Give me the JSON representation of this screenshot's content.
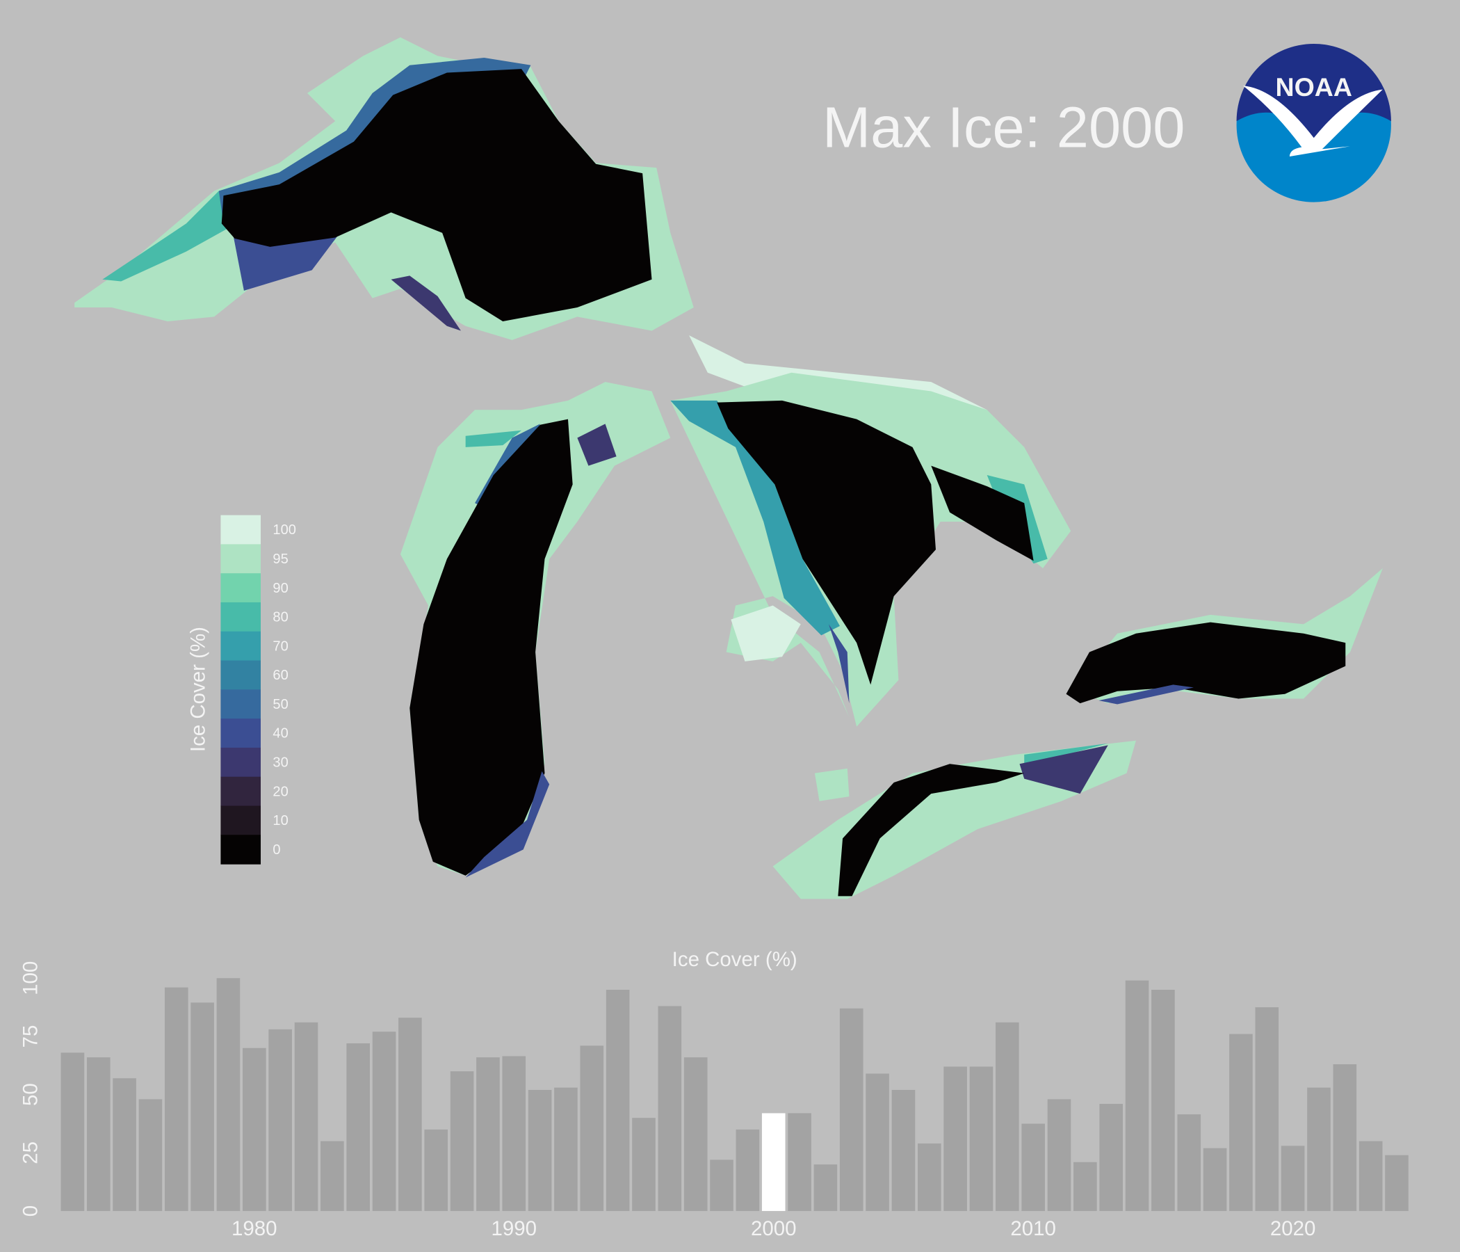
{
  "title": "Max Ice: 2000",
  "logo_text": "NOAA",
  "legend": {
    "title": "Ice Cover (%)",
    "levels": [
      100,
      95,
      90,
      80,
      70,
      60,
      50,
      40,
      30,
      20,
      10,
      0
    ],
    "colors": [
      "#d9f2e4",
      "#aee3c3",
      "#72d3ad",
      "#48bba9",
      "#359fac",
      "#3282a2",
      "#366a9e",
      "#3b4e93",
      "#3c386f",
      "#31253e",
      "#1f1620",
      "#050303"
    ]
  },
  "chart_data": {
    "type": "bar",
    "title": "Ice Cover (%)",
    "x": [
      1973,
      1974,
      1975,
      1976,
      1977,
      1978,
      1979,
      1980,
      1981,
      1982,
      1983,
      1984,
      1985,
      1986,
      1987,
      1988,
      1989,
      1990,
      1991,
      1992,
      1993,
      1994,
      1995,
      1996,
      1997,
      1998,
      1999,
      2000,
      2001,
      2002,
      2003,
      2004,
      2005,
      2006,
      2007,
      2008,
      2009,
      2010,
      2011,
      2012,
      2013,
      2014,
      2015,
      2016,
      2017,
      2018,
      2019,
      2020,
      2021,
      2022,
      2023,
      2024
    ],
    "values": [
      68,
      66,
      57,
      48,
      96,
      89.5,
      100,
      70,
      78,
      81,
      30,
      72,
      77,
      83,
      35,
      60,
      66,
      66.5,
      52,
      53,
      71,
      95,
      40,
      88,
      66,
      22,
      35,
      42,
      42,
      20,
      87,
      59,
      52,
      29,
      62,
      62,
      81,
      37.5,
      48,
      21,
      46,
      99,
      95,
      41.5,
      27,
      76,
      87.5,
      28,
      53,
      63,
      30,
      24
    ],
    "color": "#a3a3a3",
    "highlight": {
      "x": 2000,
      "color": "#ffffff"
    },
    "xlim": [
      1972.5,
      2024.5
    ],
    "xticks": [
      1980,
      1990,
      2000,
      2010,
      2020
    ],
    "ylim": [
      0,
      100
    ],
    "yticks": [
      0,
      25,
      50,
      75,
      100
    ],
    "grid": false
  }
}
